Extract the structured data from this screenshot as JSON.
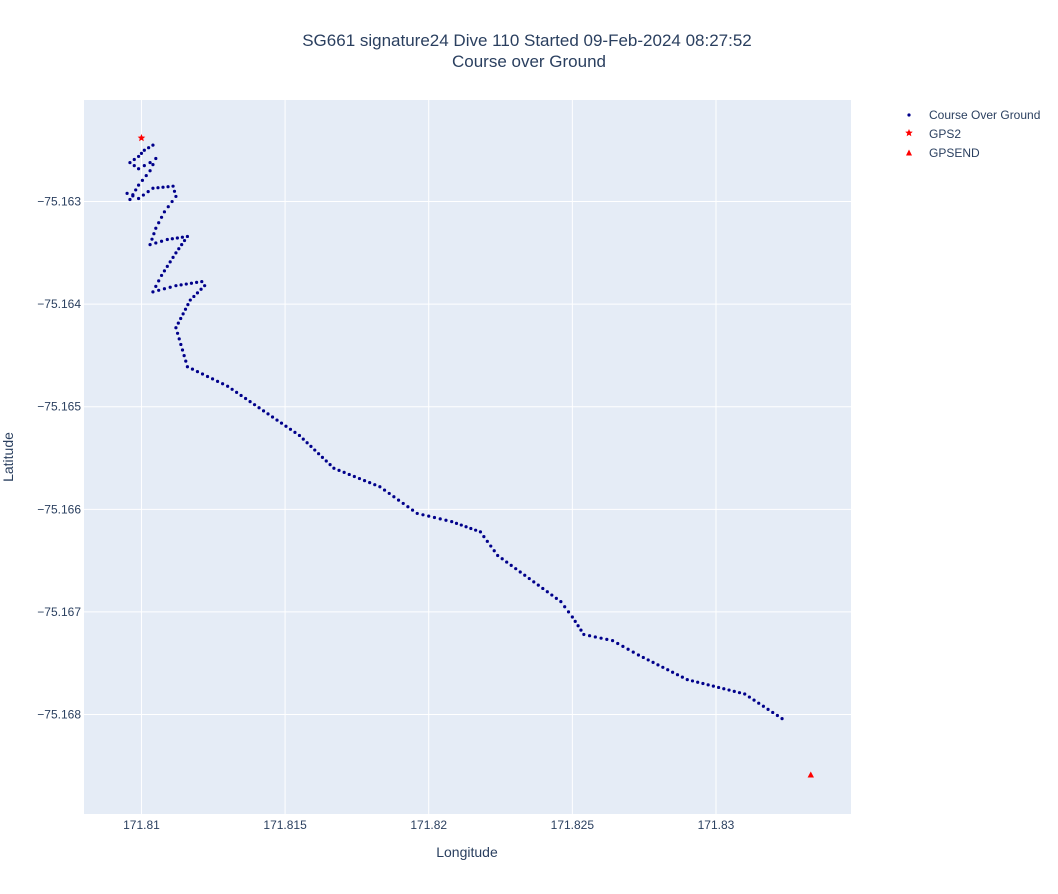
{
  "chart_data": {
    "type": "scatter",
    "title": "SG661 signature24 Dive 110 Started 09-Feb-2024 08:27:52",
    "subtitle": "Course over Ground",
    "xlabel": "Longitude",
    "ylabel": "Latitude",
    "xlim": [
      171.808,
      171.8347
    ],
    "ylim": [
      -75.16897,
      -75.16201
    ],
    "x_ticks": [
      171.81,
      171.815,
      171.82,
      171.825,
      171.83
    ],
    "x_tick_labels": [
      "171.81",
      "171.815",
      "171.82",
      "171.825",
      "171.83"
    ],
    "y_ticks": [
      -75.163,
      -75.164,
      -75.165,
      -75.166,
      -75.167,
      -75.168
    ],
    "y_tick_labels": [
      "−75.163",
      "−75.164",
      "−75.165",
      "−75.166",
      "−75.167",
      "−75.168"
    ],
    "grid": true,
    "legend_position": "top-right",
    "series": [
      {
        "name": "Course Over Ground",
        "marker": "circle",
        "color": "#00008b",
        "x": [
          171.8104,
          171.8101,
          171.8099,
          171.8096,
          171.8099,
          171.8103,
          171.8105,
          171.8103,
          171.8099,
          171.8096,
          171.8095,
          171.8099,
          171.8104,
          171.8111,
          171.8112,
          171.8108,
          171.8105,
          171.8103,
          171.8109,
          171.8116,
          171.8112,
          171.8107,
          171.8104,
          171.8112,
          171.8121,
          171.8122,
          171.8117,
          171.8112,
          171.8116,
          171.813,
          171.8155,
          171.8167,
          171.8183,
          171.8196,
          171.8208,
          171.8218,
          171.8224,
          171.8246,
          171.825,
          171.8254,
          171.8264,
          171.8273,
          171.829,
          171.831,
          171.8323
        ],
        "y": [
          -75.16245,
          -75.1625,
          -75.16256,
          -75.16262,
          -75.16268,
          -75.16262,
          -75.16258,
          -75.1627,
          -75.16284,
          -75.16298,
          -75.16292,
          -75.16297,
          -75.16287,
          -75.16285,
          -75.16295,
          -75.1631,
          -75.16326,
          -75.16342,
          -75.16337,
          -75.16334,
          -75.1635,
          -75.16372,
          -75.16388,
          -75.16382,
          -75.16378,
          -75.16382,
          -75.16396,
          -75.16423,
          -75.16461,
          -75.1648,
          -75.16528,
          -75.1656,
          -75.16578,
          -75.16604,
          -75.16612,
          -75.16622,
          -75.16645,
          -75.1669,
          -75.16705,
          -75.16722,
          -75.16728,
          -75.16742,
          -75.16766,
          -75.1678,
          -75.16804
        ]
      },
      {
        "name": "GPS2",
        "marker": "star",
        "color": "#ff0000",
        "x": [
          171.81
        ],
        "y": [
          -75.16238
        ]
      },
      {
        "name": "GPSEND",
        "marker": "triangle-up",
        "color": "#ff0000",
        "x": [
          171.8333
        ],
        "y": [
          -75.16859
        ]
      }
    ]
  }
}
